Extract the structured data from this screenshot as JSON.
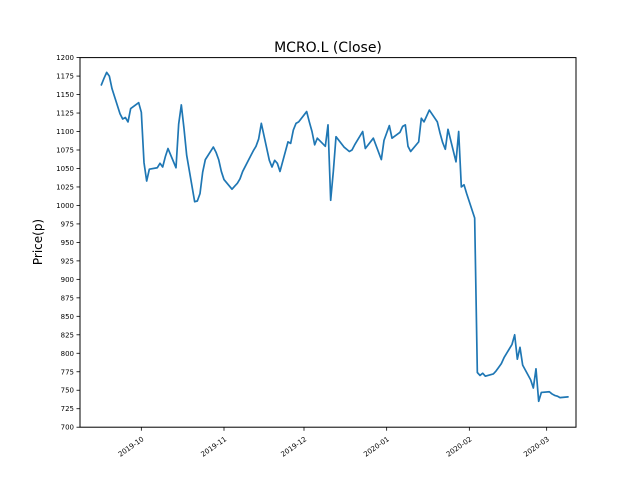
{
  "figure": {
    "background": "#ffffff",
    "title": "MCRO.L (Close)"
  },
  "chart_data": {
    "type": "line",
    "title": "MCRO.L (Close)",
    "xlabel": "",
    "ylabel": "Price(p)",
    "legend": null,
    "grid": false,
    "line_color": "#1f77b4",
    "axis_color": "#000000",
    "ylim": [
      700,
      1200
    ],
    "ytick_step": 25,
    "xlim": [
      "2019-09-08",
      "2020-03-12"
    ],
    "xticks": [
      {
        "date": "2019-10-01",
        "label": "2019-10"
      },
      {
        "date": "2019-11-01",
        "label": "2019-11"
      },
      {
        "date": "2019-12-01",
        "label": "2019-12"
      },
      {
        "date": "2020-01-01",
        "label": "2020-01"
      },
      {
        "date": "2020-02-01",
        "label": "2020-02"
      },
      {
        "date": "2020-03-01",
        "label": "2020-03"
      }
    ],
    "series": [
      {
        "name": "Close",
        "dates": [
          "2019-09-16",
          "2019-09-17",
          "2019-09-18",
          "2019-09-19",
          "2019-09-20",
          "2019-09-23",
          "2019-09-24",
          "2019-09-25",
          "2019-09-26",
          "2019-09-27",
          "2019-09-30",
          "2019-10-01",
          "2019-10-02",
          "2019-10-03",
          "2019-10-04",
          "2019-10-07",
          "2019-10-08",
          "2019-10-09",
          "2019-10-10",
          "2019-10-11",
          "2019-10-14",
          "2019-10-15",
          "2019-10-16",
          "2019-10-17",
          "2019-10-18",
          "2019-10-21",
          "2019-10-22",
          "2019-10-23",
          "2019-10-24",
          "2019-10-25",
          "2019-10-28",
          "2019-10-29",
          "2019-10-30",
          "2019-10-31",
          "2019-11-01",
          "2019-11-04",
          "2019-11-05",
          "2019-11-06",
          "2019-11-07",
          "2019-11-08",
          "2019-11-11",
          "2019-11-12",
          "2019-11-13",
          "2019-11-14",
          "2019-11-15",
          "2019-11-18",
          "2019-11-19",
          "2019-11-20",
          "2019-11-21",
          "2019-11-22",
          "2019-11-25",
          "2019-11-26",
          "2019-11-27",
          "2019-11-28",
          "2019-11-29",
          "2019-12-02",
          "2019-12-03",
          "2019-12-04",
          "2019-12-05",
          "2019-12-06",
          "2019-12-09",
          "2019-12-10",
          "2019-12-11",
          "2019-12-12",
          "2019-12-13",
          "2019-12-16",
          "2019-12-17",
          "2019-12-18",
          "2019-12-19",
          "2019-12-20",
          "2019-12-23",
          "2019-12-24",
          "2019-12-27",
          "2019-12-30",
          "2019-12-31",
          "2020-01-02",
          "2020-01-03",
          "2020-01-06",
          "2020-01-07",
          "2020-01-08",
          "2020-01-09",
          "2020-01-10",
          "2020-01-13",
          "2020-01-14",
          "2020-01-15",
          "2020-01-16",
          "2020-01-17",
          "2020-01-20",
          "2020-01-21",
          "2020-01-22",
          "2020-01-23",
          "2020-01-24",
          "2020-01-27",
          "2020-01-28",
          "2020-01-29",
          "2020-01-30",
          "2020-01-31",
          "2020-02-03",
          "2020-02-04",
          "2020-02-05",
          "2020-02-06",
          "2020-02-07",
          "2020-02-10",
          "2020-02-11",
          "2020-02-12",
          "2020-02-13",
          "2020-02-14",
          "2020-02-17",
          "2020-02-18",
          "2020-02-19",
          "2020-02-20",
          "2020-02-21",
          "2020-02-24",
          "2020-02-25",
          "2020-02-26",
          "2020-02-27",
          "2020-02-28",
          "2020-03-02",
          "2020-03-03",
          "2020-03-04",
          "2020-03-05",
          "2020-03-06",
          "2020-03-09"
        ],
        "values": [
          1163,
          1172,
          1180,
          1175,
          1158,
          1124,
          1117,
          1119,
          1113,
          1131,
          1139,
          1126,
          1058,
          1033,
          1049,
          1051,
          1057,
          1052,
          1066,
          1077,
          1051,
          1110,
          1136,
          1104,
          1068,
          1005,
          1006,
          1016,
          1045,
          1062,
          1079,
          1072,
          1062,
          1046,
          1035,
          1022,
          1026,
          1030,
          1036,
          1046,
          1067,
          1074,
          1080,
          1090,
          1111,
          1061,
          1052,
          1061,
          1057,
          1046,
          1086,
          1084,
          1102,
          1111,
          1113,
          1127,
          1113,
          1100,
          1082,
          1091,
          1080,
          1109,
          1007,
          1046,
          1093,
          1079,
          1076,
          1073,
          1075,
          1082,
          1100,
          1077,
          1091,
          1062,
          1088,
          1108,
          1091,
          1099,
          1107,
          1109,
          1080,
          1073,
          1086,
          1118,
          1113,
          1121,
          1129,
          1113,
          1098,
          1085,
          1076,
          1103,
          1059,
          1100,
          1025,
          1028,
          1016,
          983,
          774,
          770,
          773,
          769,
          772,
          776,
          781,
          786,
          794,
          812,
          825,
          792,
          808,
          784,
          764,
          753,
          779,
          735,
          747,
          748,
          745,
          743,
          742,
          740,
          741
        ]
      }
    ]
  }
}
